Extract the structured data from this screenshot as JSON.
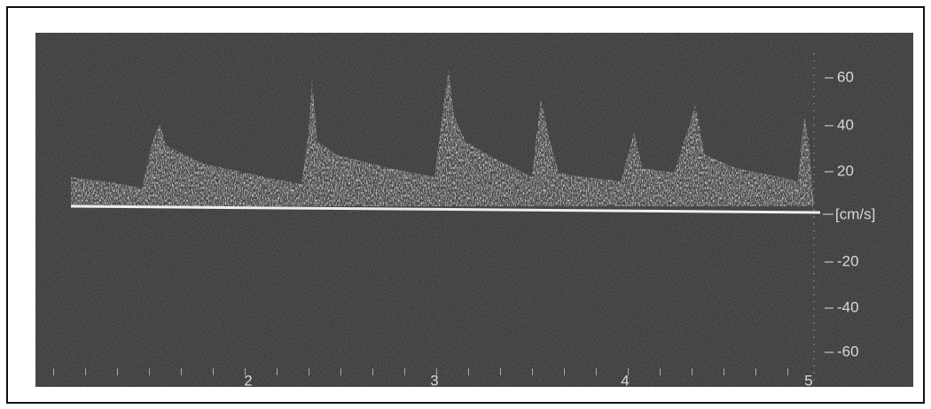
{
  "scale": {
    "labels": [
      "60",
      "40",
      "20",
      "-20",
      "-40",
      "-60"
    ],
    "unit": "[cm/s]"
  },
  "time_labels": [
    "2",
    "3",
    "4",
    "5"
  ]
}
